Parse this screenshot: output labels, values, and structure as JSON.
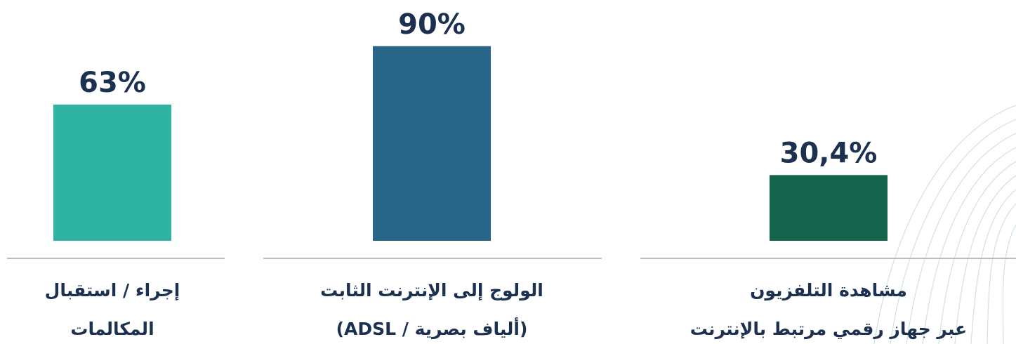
{
  "chart_data": {
    "type": "bar",
    "categories": [
      [
        "إجراء / استقبال",
        "المكالمات"
      ],
      [
        "الولوج إلى الإنترنت الثابت",
        "(ألياف بصرية / ADSL)"
      ],
      [
        "مشاهدة التلفزيون",
        "عبر جهاز رقمي مرتبط بالإنترنت"
      ]
    ],
    "values": [
      63,
      90,
      30.4
    ],
    "value_labels": [
      "63%",
      "90%",
      "30,4%"
    ],
    "colors": [
      "#2fb3a3",
      "#276689",
      "#14634b"
    ]
  }
}
